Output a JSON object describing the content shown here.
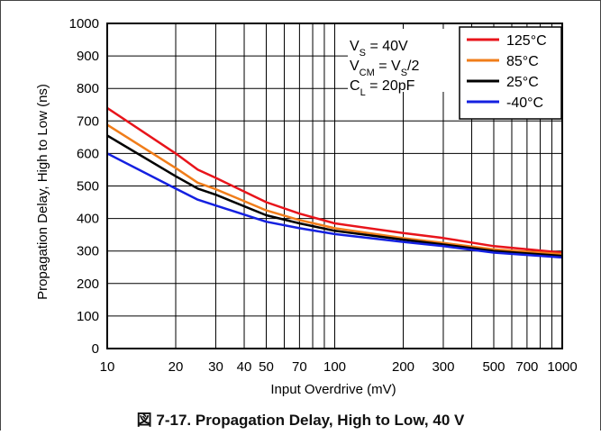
{
  "figure": {
    "caption": "図 7-17. Propagation Delay, High to Low, 40 V"
  },
  "chart_data": {
    "type": "line",
    "xscale": "log",
    "xlabel": "Input Overdrive (mV)",
    "ylabel": "Propagation Delay, High to Low (ns)",
    "xlim": [
      10,
      1000
    ],
    "ylim": [
      0,
      1000
    ],
    "xticks": [
      10,
      20,
      30,
      40,
      50,
      70,
      100,
      200,
      300,
      500,
      700,
      1000
    ],
    "xtick_labels": [
      "10",
      "20",
      "30",
      "40",
      "50",
      "70",
      "100",
      "200",
      "300",
      "500",
      "700",
      "1000"
    ],
    "yticks": [
      0,
      100,
      200,
      300,
      400,
      500,
      600,
      700,
      800,
      900,
      1000
    ],
    "ytick_labels": [
      "0",
      "100",
      "200",
      "300",
      "400",
      "500",
      "600",
      "700",
      "800",
      "900",
      "1000"
    ],
    "grid": true,
    "legend_position": "top-right",
    "conditions": {
      "line1_main": "V",
      "line1_sub": "S",
      "line1_tail": " = 40V",
      "line2_main": "V",
      "line2_sub": "CM",
      "line2_mid": " = V",
      "line2_sub2": "S",
      "line2_tail": "/2",
      "line3_main": "C",
      "line3_sub": "L",
      "line3_tail": " = 20pF"
    },
    "series": [
      {
        "name": "125°C",
        "color": "#e8141b",
        "x": [
          10,
          20,
          25,
          30,
          50,
          70,
          100,
          200,
          300,
          500,
          1000
        ],
        "y": [
          740,
          600,
          550,
          525,
          450,
          415,
          385,
          355,
          340,
          315,
          295
        ]
      },
      {
        "name": "85°C",
        "color": "#f07d1a",
        "x": [
          10,
          20,
          25,
          30,
          50,
          70,
          100,
          200,
          300,
          500,
          1000
        ],
        "y": [
          688,
          555,
          510,
          490,
          425,
          395,
          370,
          340,
          325,
          305,
          290
        ]
      },
      {
        "name": "25°C",
        "color": "#000000",
        "x": [
          10,
          20,
          25,
          30,
          50,
          70,
          100,
          200,
          300,
          500,
          1000
        ],
        "y": [
          655,
          530,
          492,
          473,
          410,
          385,
          362,
          335,
          320,
          300,
          285
        ]
      },
      {
        "name": "-40°C",
        "color": "#1420e0",
        "x": [
          10,
          20,
          25,
          30,
          50,
          70,
          100,
          200,
          300,
          500,
          1000
        ],
        "y": [
          600,
          492,
          458,
          440,
          390,
          370,
          352,
          328,
          315,
          295,
          280
        ]
      }
    ]
  }
}
